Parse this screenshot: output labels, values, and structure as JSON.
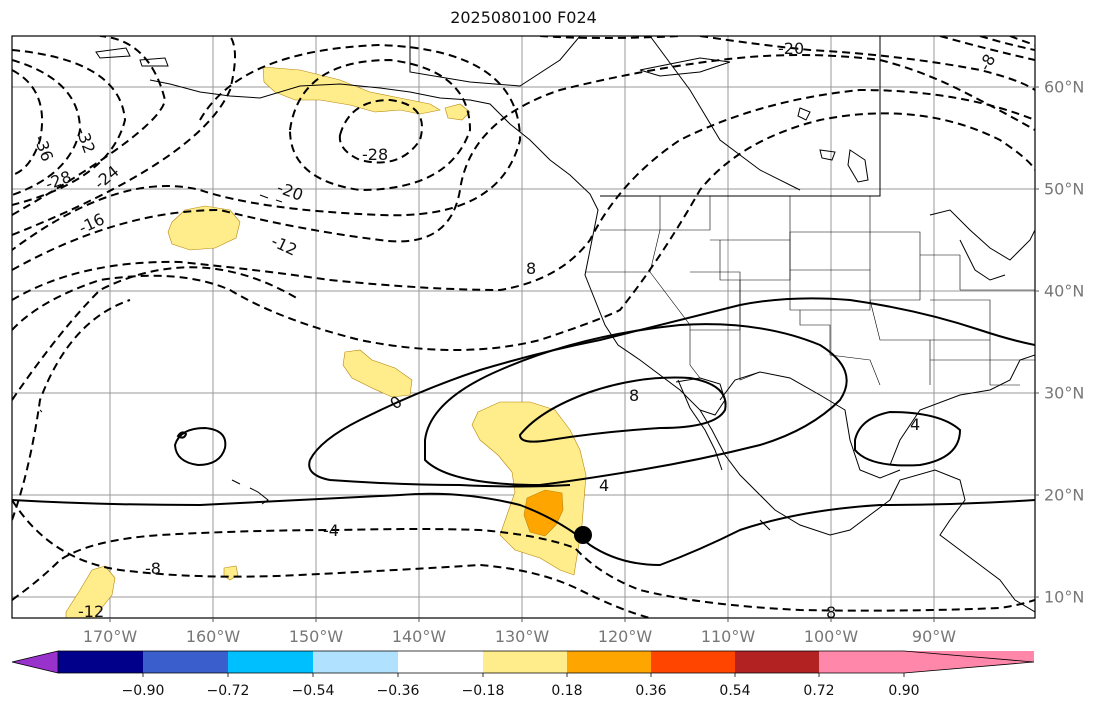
{
  "title": "2025080100 F024",
  "longitude_labels": [
    "170°W",
    "160°W",
    "150°W",
    "140°W",
    "130°W",
    "120°W",
    "110°W",
    "100°W",
    "90°W"
  ],
  "latitude_labels": [
    "60°N",
    "50°N",
    "40°N",
    "30°N",
    "20°N",
    "10°N"
  ],
  "contour_labels": {
    "dashed": [
      "-36",
      "-32",
      "-28",
      "-24",
      "-20",
      "-16",
      "-12",
      "-8",
      "-4",
      "-28",
      "-20",
      "-12",
      "-8",
      "-20",
      "-8",
      "-8"
    ],
    "solid": [
      "0",
      "8",
      "4",
      "4",
      "4"
    ]
  },
  "contour_label_text": {
    "c1": "-36",
    "c2": "-32",
    "c3": "-28",
    "c4": "-24",
    "c5": "-16",
    "c6": "-28",
    "c7": "-20",
    "c8": "-12",
    "c9": "8",
    "c10": "0",
    "c11": "8",
    "c12": "4",
    "c13": "4",
    "c14": "-4",
    "c15": "8",
    "c16": "-12",
    "c17": "-8",
    "c18": "-20",
    "c19": "-8"
  },
  "colorbar": {
    "colors": [
      "#9932cc",
      "#00008b",
      "#3a5fcd",
      "#00bfff",
      "#b0e2ff",
      "#ffffff",
      "#ffec8b",
      "#ffa500",
      "#ff4500",
      "#b22222",
      "#ff88aa"
    ],
    "tick_labels": [
      "−0.90",
      "−0.72",
      "−0.54",
      "−0.36",
      "−0.18",
      "0.18",
      "0.36",
      "0.54",
      "0.72",
      "0.90"
    ]
  },
  "shading_colors": {
    "light": "#ffec8b",
    "medium": "#ffa500"
  },
  "marker": "storm-center-dot"
}
